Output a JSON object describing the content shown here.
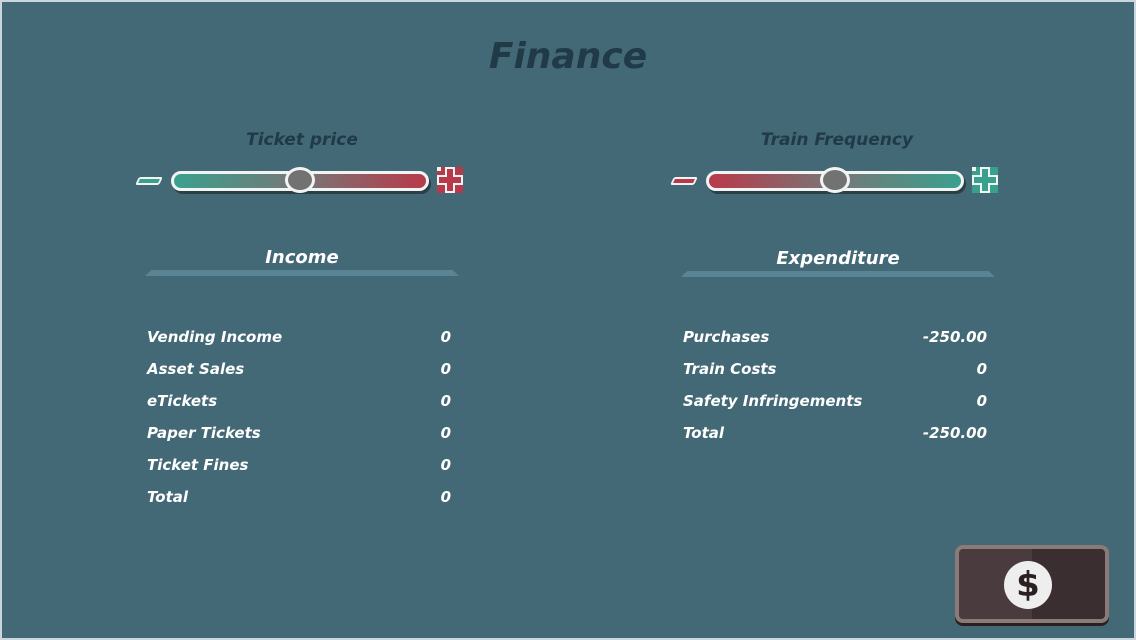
{
  "title": "Finance",
  "ticket_price": {
    "label": "Ticket price",
    "value": 0.5,
    "left_color": "#3aa08e",
    "right_color": "#b83a4a"
  },
  "train_frequency": {
    "label": "Train Frequency",
    "value": 0.5,
    "left_color": "#b83a4a",
    "right_color": "#3aa08e"
  },
  "income": {
    "heading": "Income",
    "rows": [
      {
        "label": "Vending Income",
        "value": "0"
      },
      {
        "label": "Asset Sales",
        "value": "0"
      },
      {
        "label": "eTickets",
        "value": "0"
      },
      {
        "label": "Paper Tickets",
        "value": "0"
      },
      {
        "label": "Ticket Fines",
        "value": "0"
      },
      {
        "label": "Total",
        "value": "0"
      }
    ]
  },
  "expenditure": {
    "heading": "Expenditure",
    "rows": [
      {
        "label": "Purchases",
        "value": "-250.00"
      },
      {
        "label": "Train Costs",
        "value": "0"
      },
      {
        "label": "Safety Infringements",
        "value": "0"
      },
      {
        "label": "Total",
        "value": "-250.00"
      }
    ]
  },
  "money_button": {
    "icon": "dollar-coin-icon",
    "symbol": "$"
  }
}
